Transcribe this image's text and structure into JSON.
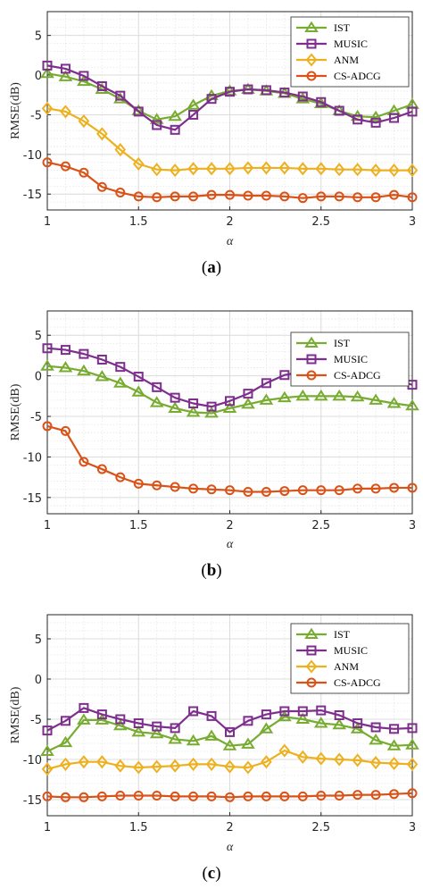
{
  "colors": {
    "IST": "#77ac30",
    "MUSIC": "#7e2f8e",
    "ANM": "#edb120",
    "CS-ADCG": "#d95319",
    "grid": "#dcdcdc"
  },
  "chart_data": [
    {
      "type": "line",
      "caption": "(a)",
      "xlabel": "α",
      "ylabel": "RMSE(dB)",
      "xlim": [
        1,
        3
      ],
      "ylim": [
        -17,
        8
      ],
      "xticks": [
        "1",
        "1.5",
        "2",
        "2.5",
        "3"
      ],
      "yticks": [
        "5",
        "0",
        "-5",
        "-10",
        "-15"
      ],
      "grid": true,
      "legend_position": "top-right",
      "x": [
        1,
        1.1,
        1.2,
        1.3,
        1.4,
        1.5,
        1.6,
        1.7,
        1.8,
        1.9,
        2,
        2.1,
        2.2,
        2.3,
        2.4,
        2.5,
        2.6,
        2.7,
        2.8,
        2.9,
        3
      ],
      "series": [
        {
          "name": "IST",
          "marker": "triangle",
          "values": [
            0.2,
            -0.2,
            -0.8,
            -1.8,
            -3,
            -4.5,
            -5.6,
            -5.2,
            -3.8,
            -2.6,
            -2,
            -1.8,
            -2,
            -2.3,
            -3,
            -3.6,
            -4.5,
            -5.2,
            -5.3,
            -4.5,
            -3.7
          ]
        },
        {
          "name": "MUSIC",
          "marker": "square",
          "values": [
            1.2,
            0.8,
            -0.1,
            -1.4,
            -2.6,
            -4.6,
            -6.3,
            -6.9,
            -5,
            -3,
            -2.1,
            -1.8,
            -1.9,
            -2.2,
            -2.7,
            -3.4,
            -4.5,
            -5.6,
            -6,
            -5.4,
            -4.6
          ]
        },
        {
          "name": "ANM",
          "marker": "diamond",
          "values": [
            -4.2,
            -4.6,
            -5.8,
            -7.4,
            -9.4,
            -11.2,
            -11.9,
            -12,
            -11.8,
            -11.8,
            -11.8,
            -11.7,
            -11.7,
            -11.7,
            -11.8,
            -11.8,
            -11.9,
            -11.9,
            -12,
            -12,
            -12
          ]
        },
        {
          "name": "CS-ADCG",
          "marker": "circle",
          "values": [
            -11,
            -11.5,
            -12.3,
            -14.1,
            -14.8,
            -15.3,
            -15.4,
            -15.3,
            -15.3,
            -15.1,
            -15.1,
            -15.2,
            -15.2,
            -15.3,
            -15.5,
            -15.3,
            -15.3,
            -15.4,
            -15.4,
            -15.1,
            -15.4
          ]
        }
      ]
    },
    {
      "type": "line",
      "caption": "(b)",
      "xlabel": "α",
      "ylabel": "RMSE(dB)",
      "xlim": [
        1,
        3
      ],
      "ylim": [
        -17,
        8
      ],
      "xticks": [
        "1",
        "1.5",
        "2",
        "2.5",
        "3"
      ],
      "yticks": [
        "5",
        "0",
        "-5",
        "-10",
        "-15"
      ],
      "grid": true,
      "legend_position": "top-right",
      "x": [
        1,
        1.1,
        1.2,
        1.3,
        1.4,
        1.5,
        1.6,
        1.7,
        1.8,
        1.9,
        2,
        2.1,
        2.2,
        2.3,
        2.4,
        2.5,
        2.6,
        2.7,
        2.8,
        2.9,
        3
      ],
      "series": [
        {
          "name": "IST",
          "marker": "triangle",
          "values": [
            1.2,
            1,
            0.6,
            -0.1,
            -0.9,
            -2,
            -3.3,
            -4,
            -4.5,
            -4.6,
            -4,
            -3.5,
            -3,
            -2.7,
            -2.5,
            -2.5,
            -2.5,
            -2.6,
            -3,
            -3.4,
            -3.7
          ]
        },
        {
          "name": "MUSIC",
          "marker": "square",
          "values": [
            3.4,
            3.2,
            2.7,
            2,
            1.1,
            -0.1,
            -1.4,
            -2.7,
            -3.4,
            -3.8,
            -3.1,
            -2.2,
            -0.9,
            0.1,
            0.5,
            0.6,
            0.8,
            0.5,
            0.2,
            -0.5,
            -1.1
          ]
        },
        {
          "name": "CS-ADCG",
          "marker": "circle",
          "values": [
            -6.2,
            -6.8,
            -10.6,
            -11.5,
            -12.5,
            -13.3,
            -13.5,
            -13.7,
            -13.9,
            -14,
            -14.1,
            -14.3,
            -14.3,
            -14.2,
            -14.1,
            -14.1,
            -14.1,
            -13.9,
            -13.9,
            -13.8,
            -13.8
          ]
        }
      ]
    },
    {
      "type": "line",
      "caption": "(c)",
      "xlabel": "α",
      "ylabel": "RMSE(dB)",
      "xlim": [
        1,
        3
      ],
      "ylim": [
        -17,
        8
      ],
      "xticks": [
        "1",
        "1.5",
        "2",
        "2.5",
        "3"
      ],
      "yticks": [
        "5",
        "0",
        "-5",
        "-10",
        "-15"
      ],
      "grid": true,
      "legend_position": "top-right",
      "x": [
        1,
        1.1,
        1.2,
        1.3,
        1.4,
        1.5,
        1.6,
        1.7,
        1.8,
        1.9,
        2,
        2.1,
        2.2,
        2.3,
        2.4,
        2.5,
        2.6,
        2.7,
        2.8,
        2.9,
        3
      ],
      "series": [
        {
          "name": "IST",
          "marker": "triangle",
          "values": [
            -9,
            -7.9,
            -5.1,
            -5.1,
            -5.8,
            -6.6,
            -6.8,
            -7.5,
            -7.7,
            -7.1,
            -8.3,
            -8.1,
            -6.2,
            -4.7,
            -5,
            -5.5,
            -5.7,
            -6.2,
            -7.6,
            -8.3,
            -8.2
          ]
        },
        {
          "name": "MUSIC",
          "marker": "square",
          "values": [
            -6.4,
            -5.2,
            -3.6,
            -4.4,
            -5,
            -5.5,
            -5.9,
            -6.1,
            -4,
            -4.6,
            -6.6,
            -5.2,
            -4.4,
            -4,
            -4,
            -3.9,
            -4.5,
            -5.5,
            -6,
            -6.2,
            -6.1
          ]
        },
        {
          "name": "ANM",
          "marker": "diamond",
          "values": [
            -11.2,
            -10.6,
            -10.3,
            -10.3,
            -10.8,
            -11,
            -10.9,
            -10.8,
            -10.6,
            -10.6,
            -10.9,
            -11,
            -10.3,
            -8.9,
            -9.7,
            -9.9,
            -10,
            -10.1,
            -10.4,
            -10.5,
            -10.6
          ]
        },
        {
          "name": "CS-ADCG",
          "marker": "circle",
          "values": [
            -14.6,
            -14.7,
            -14.7,
            -14.6,
            -14.5,
            -14.5,
            -14.5,
            -14.6,
            -14.6,
            -14.6,
            -14.7,
            -14.6,
            -14.6,
            -14.6,
            -14.6,
            -14.5,
            -14.5,
            -14.4,
            -14.4,
            -14.3,
            -14.2
          ]
        }
      ]
    }
  ]
}
